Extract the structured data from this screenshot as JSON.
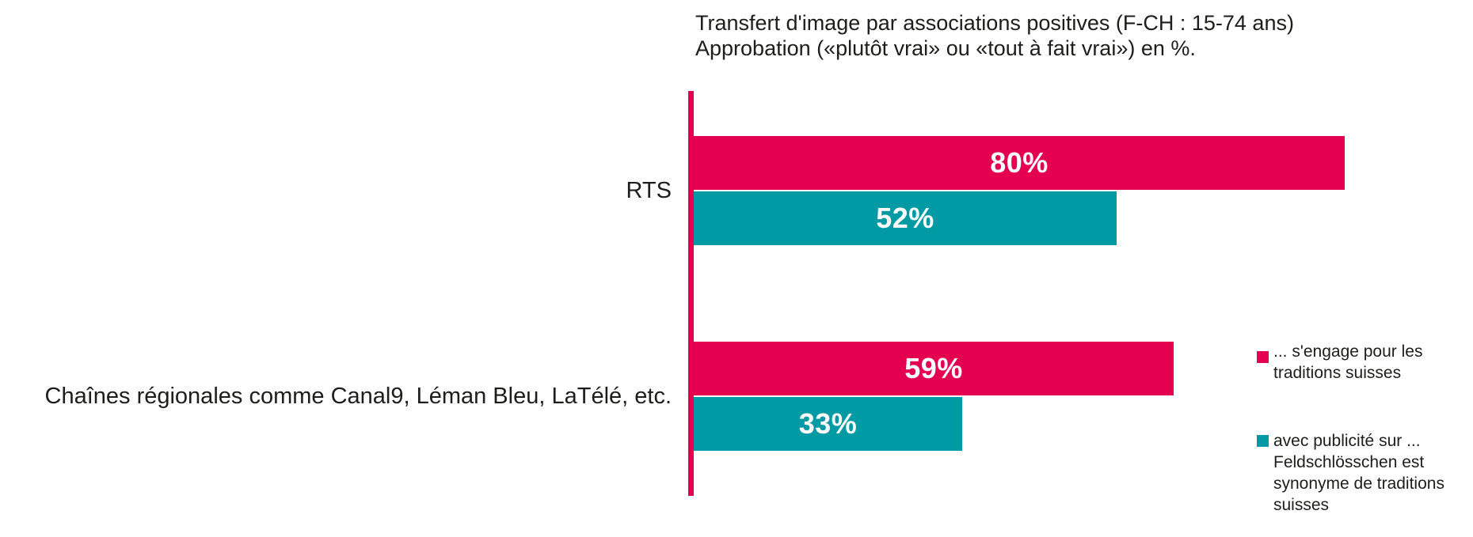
{
  "title": {
    "line1": "Transfert d'image par associations positives (F-CH : 15-74 ans)",
    "line2": "Approbation («plutôt vrai» ou «tout à fait vrai») en %."
  },
  "colors": {
    "series1_pink": "#e4004f",
    "series2_teal": "#009aa4",
    "axis": "#e4004f",
    "text": "#1d1d1b",
    "value_label": "#ffffff"
  },
  "chart_data": {
    "type": "bar",
    "orientation": "horizontal",
    "title": "Transfert d'image par associations positives (F-CH : 15-74 ans) Approbation («plutôt vrai» ou «tout à fait vrai») en %.",
    "categories": [
      "RTS",
      "Chaînes régionales comme Canal9, Léman Bleu, LaTélé, etc."
    ],
    "series": [
      {
        "name": "... s'engage pour les traditions suisses",
        "color": "#e4004f",
        "values": [
          80,
          59
        ]
      },
      {
        "name": "avec publicité sur ... Feldschlösschen est synonyme de traditions suisses",
        "color": "#009aa4",
        "values": [
          52,
          33
        ]
      }
    ],
    "value_suffix": "%",
    "xlim": [
      0,
      100
    ],
    "grid": false,
    "axis_line": "left-vertical-pink",
    "legend_position": "right"
  },
  "legend": {
    "items": [
      {
        "label": "... s'engage pour les traditions suisses",
        "lines": [
          "... s'engage pour les",
          "traditions suisses"
        ]
      },
      {
        "label": "avec publicité sur ... Feldschlösschen est synonyme de traditions suisses",
        "lines": [
          "avec publicité sur ...",
          "Feldschlösschen est",
          "synonyme de traditions",
          "suisses"
        ]
      }
    ]
  }
}
